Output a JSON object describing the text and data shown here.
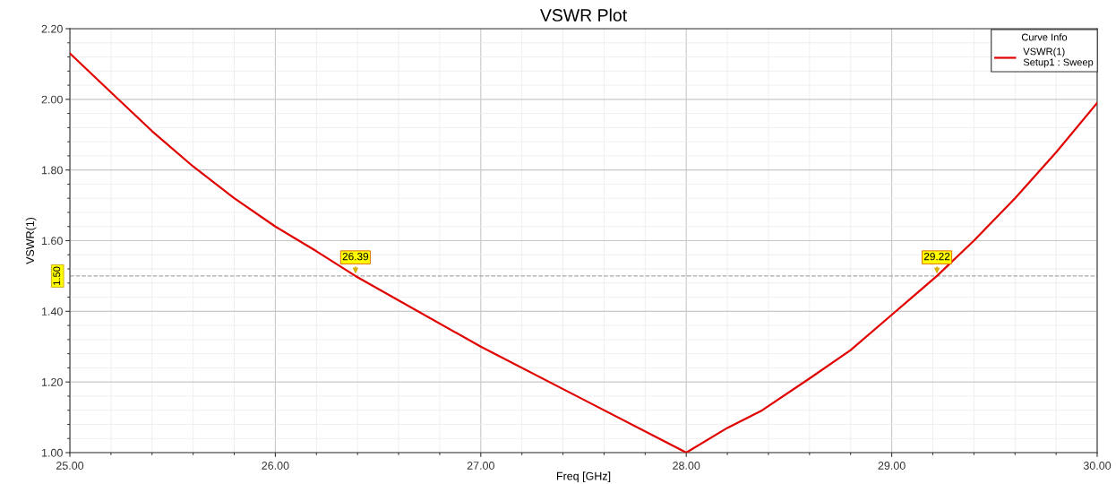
{
  "chart_data": {
    "type": "line",
    "title": "VSWR Plot",
    "xlabel": "Freq [GHz]",
    "ylabel": "VSWR(1)",
    "legend_title": "Curve Info",
    "x": [
      25.0,
      25.2,
      25.4,
      25.6,
      25.8,
      26.0,
      26.2,
      26.39,
      27.0,
      27.5,
      28.0,
      28.2,
      28.37,
      28.6,
      28.8,
      29.0,
      29.22,
      29.4,
      29.6,
      29.8,
      30.0
    ],
    "series": [
      {
        "name": "VSWR(1)\nSetup1 : Sweep",
        "color": "#e00000",
        "values": [
          2.13,
          2.02,
          1.91,
          1.81,
          1.72,
          1.64,
          1.57,
          1.5,
          1.3,
          1.15,
          1.0,
          1.07,
          1.12,
          1.21,
          1.29,
          1.39,
          1.5,
          1.6,
          1.72,
          1.85,
          1.99
        ]
      }
    ],
    "xlim": [
      25.0,
      30.0
    ],
    "ylim": [
      1.0,
      2.2
    ],
    "xticks": [
      {
        "value": 25,
        "label": "25.00"
      },
      {
        "value": 26,
        "label": "26.00"
      },
      {
        "value": 27,
        "label": "27.00"
      },
      {
        "value": 28,
        "label": "28.00"
      },
      {
        "value": 29,
        "label": "29.00"
      },
      {
        "value": 30,
        "label": "30.00"
      }
    ],
    "yticks": [
      {
        "value": 1.0,
        "label": "1.00"
      },
      {
        "value": 1.2,
        "label": "1.20"
      },
      {
        "value": 1.4,
        "label": "1.40"
      },
      {
        "value": 1.6,
        "label": "1.60"
      },
      {
        "value": 1.8,
        "label": "1.80"
      },
      {
        "value": 2.0,
        "label": "2.00"
      },
      {
        "value": 2.2,
        "label": "2.20"
      }
    ],
    "ref_lines": [
      {
        "axis": "y",
        "value": 1.5,
        "label": "1.50",
        "color": "#a8a8a8",
        "line_style": "dashed"
      }
    ],
    "annotations": [
      {
        "text": "26.39",
        "x": 26.39,
        "y": 1.5
      },
      {
        "text": "29.22",
        "x": 29.22,
        "y": 1.5
      }
    ],
    "grid": true,
    "legend": "top right",
    "marker": "none",
    "line_style": "solid"
  }
}
